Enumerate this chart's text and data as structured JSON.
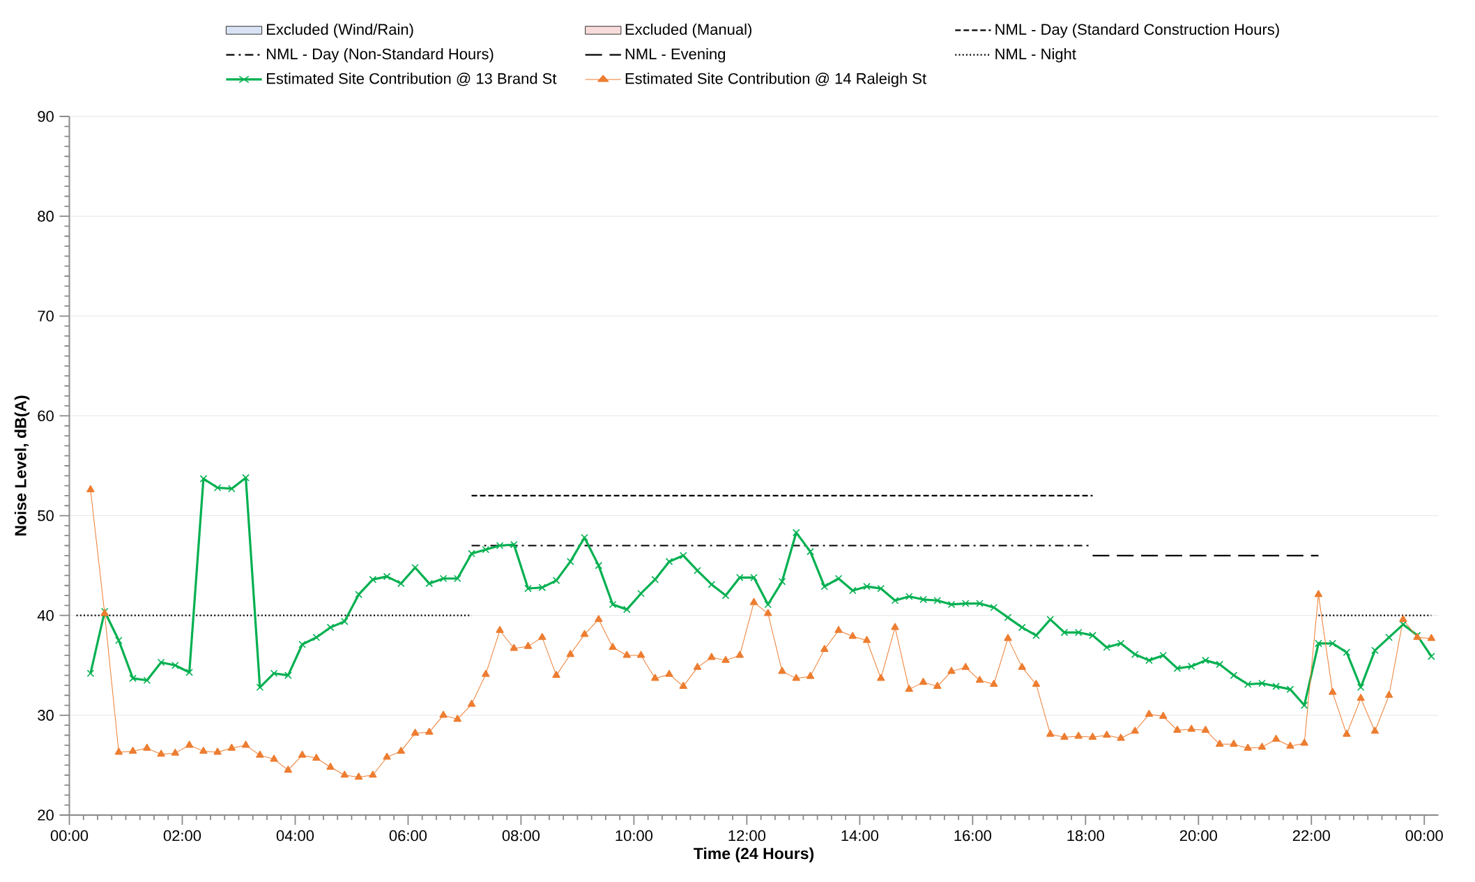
{
  "chart_data": {
    "type": "line",
    "xlabel": "Time (24 Hours)",
    "ylabel": "Noise Level, dB(A)",
    "x": [
      0.375,
      0.625,
      0.875,
      1.125,
      1.375,
      1.625,
      1.875,
      2.125,
      2.375,
      2.625,
      2.875,
      3.125,
      3.375,
      3.625,
      3.875,
      4.125,
      4.375,
      4.625,
      4.875,
      5.125,
      5.375,
      5.625,
      5.875,
      6.125,
      6.375,
      6.625,
      6.875,
      7.125,
      7.375,
      7.625,
      7.875,
      8.125,
      8.375,
      8.625,
      8.875,
      9.125,
      9.375,
      9.625,
      9.875,
      10.125,
      10.375,
      10.625,
      10.875,
      11.125,
      11.375,
      11.625,
      11.875,
      12.125,
      12.375,
      12.625,
      12.875,
      13.125,
      13.375,
      13.625,
      13.875,
      14.125,
      14.375,
      14.625,
      14.875,
      15.125,
      15.375,
      15.625,
      15.875,
      16.125,
      16.375,
      16.625,
      16.875,
      17.125,
      17.375,
      17.625,
      17.875,
      18.125,
      18.375,
      18.625,
      18.875,
      19.125,
      19.375,
      19.625,
      19.875,
      20.125,
      20.375,
      20.625,
      20.875,
      21.125,
      21.375,
      21.625,
      21.875,
      22.125,
      22.375,
      22.625,
      22.875,
      23.125,
      23.375,
      23.625,
      23.875,
      24.125
    ],
    "series": [
      {
        "type": "area",
        "name": "Excluded (Wind/Rain)",
        "color": "#dae3f3",
        "values": [
          null,
          null,
          null,
          null,
          null,
          null,
          null,
          null,
          null,
          null,
          null,
          null,
          null,
          null,
          null,
          null,
          null,
          null,
          null,
          null,
          null,
          null,
          null,
          null,
          null,
          null,
          null,
          null,
          null,
          null,
          null,
          null,
          null,
          null,
          null,
          null,
          null,
          null,
          null,
          null,
          null,
          null,
          null,
          null,
          null,
          null,
          null,
          null,
          null,
          null,
          null,
          null,
          null,
          null,
          null,
          null,
          null,
          null,
          null,
          null,
          null,
          null,
          null,
          null,
          null,
          null,
          null,
          null,
          null,
          null,
          null,
          null,
          null,
          null,
          null,
          null,
          null,
          null,
          null,
          null,
          null,
          null,
          null,
          null,
          null,
          null,
          null,
          null,
          null,
          null,
          null,
          null,
          null,
          null,
          null,
          null
        ]
      },
      {
        "type": "area",
        "name": "Excluded (Manual)",
        "color": "#f8dcdc",
        "values": [
          null,
          null,
          null,
          null,
          null,
          null,
          null,
          null,
          null,
          null,
          null,
          null,
          null,
          null,
          null,
          null,
          null,
          null,
          null,
          null,
          null,
          null,
          null,
          null,
          null,
          null,
          null,
          null,
          null,
          null,
          null,
          null,
          null,
          null,
          null,
          null,
          null,
          null,
          null,
          null,
          null,
          null,
          null,
          null,
          null,
          null,
          null,
          null,
          null,
          null,
          null,
          null,
          null,
          null,
          null,
          null,
          null,
          null,
          null,
          null,
          null,
          null,
          null,
          null,
          null,
          null,
          null,
          null,
          null,
          null,
          null,
          null,
          null,
          null,
          null,
          null,
          null,
          null,
          null,
          null,
          null,
          null,
          null,
          null,
          null,
          null,
          null,
          null,
          null,
          null,
          null,
          null,
          null,
          null,
          null,
          null
        ]
      },
      {
        "name": "NML - Day (Standard Construction Hours)",
        "color": "#000000",
        "line_style": "dashed",
        "marker": "none",
        "x": [
          7.125,
          18.125
        ],
        "values": [
          52,
          52
        ]
      },
      {
        "name": "NML - Day (Non-Standard Hours)",
        "color": "#000000",
        "line_style": "dashdot",
        "marker": "none",
        "x": [
          7.125,
          18.125
        ],
        "values": [
          47,
          47
        ]
      },
      {
        "name": "NML - Evening",
        "color": "#000000",
        "line_style": "longdash",
        "marker": "none",
        "x": [
          18.125,
          22.125
        ],
        "values": [
          46,
          46
        ]
      },
      {
        "name": "NML - Night",
        "color": "#000000",
        "line_style": "dotted",
        "marker": "none",
        "x": [
          0.125,
          7.125,
          15,
          22.125,
          24.125
        ],
        "values": [
          40,
          40,
          null,
          40,
          40
        ]
      },
      {
        "name": "Estimated Site Contribution @ 13 Brand St",
        "color": "#00b050",
        "line_style": "solid",
        "marker": "cross",
        "values": [
          34.2,
          40.4,
          37.5,
          33.7,
          33.5,
          35.3,
          35.0,
          34.3,
          53.7,
          52.8,
          52.7,
          53.8,
          32.8,
          34.2,
          34.0,
          37.1,
          37.8,
          38.8,
          39.4,
          42.1,
          43.6,
          43.9,
          43.2,
          44.8,
          43.2,
          43.7,
          43.7,
          46.2,
          46.6,
          47.0,
          47.1,
          42.7,
          42.8,
          43.5,
          45.4,
          47.8,
          45.0,
          41.1,
          40.6,
          42.2,
          43.6,
          45.4,
          46.0,
          44.5,
          43.1,
          42.0,
          43.8,
          43.8,
          41.1,
          43.4,
          48.3,
          46.4,
          42.9,
          43.7,
          42.5,
          42.9,
          42.7,
          41.5,
          41.9,
          41.6,
          41.5,
          41.1,
          41.2,
          41.2,
          40.8,
          39.8,
          38.8,
          38.0,
          39.6,
          38.3,
          38.3,
          38.0,
          36.8,
          37.2,
          36.1,
          35.5,
          36.0,
          34.7,
          34.9,
          35.5,
          35.1,
          34.0,
          33.1,
          33.2,
          32.9,
          32.6,
          31.0,
          37.2,
          37.2,
          36.3,
          32.8,
          36.5,
          37.8,
          39.1,
          38.0,
          35.9
        ]
      },
      {
        "name": "Estimated Site Contribution @ 14 Raleigh St",
        "color": "#ed7d31",
        "line_style": "solid",
        "marker": "triangle",
        "values": [
          52.6,
          40.2,
          26.3,
          26.4,
          26.7,
          26.1,
          26.2,
          27.0,
          26.4,
          26.3,
          26.7,
          27.0,
          26.0,
          25.6,
          24.5,
          26.0,
          25.7,
          24.8,
          24.0,
          23.8,
          24.0,
          25.8,
          26.4,
          28.2,
          28.3,
          30.0,
          29.6,
          31.1,
          34.1,
          38.5,
          36.7,
          36.9,
          37.8,
          34.0,
          36.1,
          38.1,
          39.6,
          36.8,
          36.0,
          36.0,
          33.7,
          34.1,
          32.9,
          34.8,
          35.8,
          35.5,
          36.0,
          41.3,
          40.2,
          34.4,
          33.7,
          33.9,
          36.6,
          38.5,
          37.9,
          37.5,
          33.7,
          38.8,
          32.6,
          33.3,
          32.9,
          34.4,
          34.8,
          33.5,
          33.1,
          37.7,
          34.8,
          33.1,
          28.1,
          27.8,
          27.9,
          27.8,
          28.0,
          27.7,
          28.4,
          30.1,
          29.9,
          28.5,
          28.6,
          28.5,
          27.1,
          27.1,
          26.7,
          26.8,
          27.6,
          26.9,
          27.2,
          42.1,
          32.3,
          28.1,
          31.7,
          28.4,
          32.0,
          39.6,
          37.8,
          37.7
        ]
      }
    ],
    "xlim": [
      0,
      24.25
    ],
    "xticks": [
      {
        "value": 0,
        "label": "00:00"
      },
      {
        "value": 2,
        "label": "02:00"
      },
      {
        "value": 4,
        "label": "04:00"
      },
      {
        "value": 6,
        "label": "06:00"
      },
      {
        "value": 8,
        "label": "08:00"
      },
      {
        "value": 10,
        "label": "10:00"
      },
      {
        "value": 12,
        "label": "12:00"
      },
      {
        "value": 14,
        "label": "14:00"
      },
      {
        "value": 16,
        "label": "16:00"
      },
      {
        "value": 18,
        "label": "18:00"
      },
      {
        "value": 20,
        "label": "20:00"
      },
      {
        "value": 22,
        "label": "22:00"
      },
      {
        "value": 24,
        "label": "00:00"
      }
    ],
    "ylim": [
      20,
      90
    ],
    "yticks": [
      20,
      30,
      40,
      50,
      60,
      70,
      80,
      90
    ],
    "grid": "y",
    "legend": "top"
  }
}
